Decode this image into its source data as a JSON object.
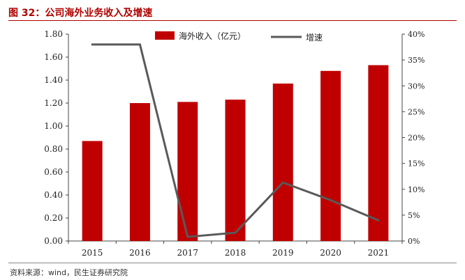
{
  "header": {
    "title": "图 32：公司海外业务收入及增速"
  },
  "footer": {
    "source": "资料来源：wind，民生证券研究院"
  },
  "chart_data": {
    "type": "bar",
    "categories": [
      "2015",
      "2016",
      "2017",
      "2018",
      "2019",
      "2020",
      "2021"
    ],
    "series": [
      {
        "name": "海外收入（亿元）",
        "type": "bar",
        "axis": "left",
        "color": "#c00000",
        "values": [
          0.87,
          1.2,
          1.21,
          1.23,
          1.37,
          1.48,
          1.53
        ]
      },
      {
        "name": "增速",
        "type": "line",
        "axis": "right",
        "color": "#595959",
        "values": [
          38,
          38,
          0.8,
          1.6,
          11.3,
          7.9,
          4.0
        ]
      }
    ],
    "y_left": {
      "min": 0,
      "max": 1.8,
      "ticks": [
        "0.00",
        "0.20",
        "0.40",
        "0.60",
        "0.80",
        "1.00",
        "1.20",
        "1.40",
        "1.60",
        "1.80"
      ]
    },
    "y_right": {
      "min": 0,
      "max": 40,
      "ticks": [
        "0%",
        "5%",
        "10%",
        "15%",
        "20%",
        "25%",
        "30%",
        "35%",
        "40%"
      ]
    },
    "legend_position": "top"
  }
}
